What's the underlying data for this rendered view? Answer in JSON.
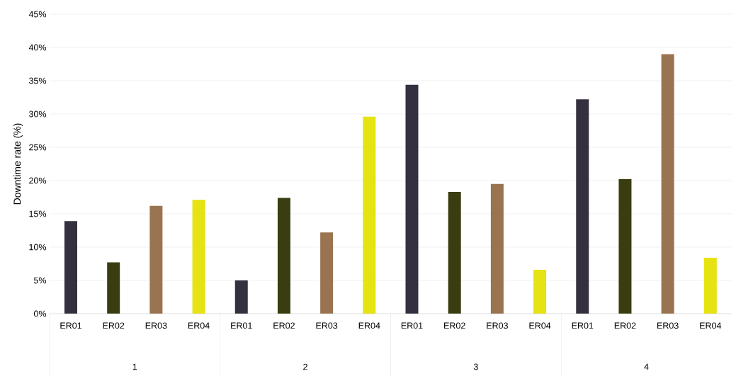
{
  "chart_data": {
    "type": "bar",
    "ylabel": "Downtime rate (%)",
    "categories": [
      "1",
      "2",
      "3",
      "4"
    ],
    "series": [
      {
        "name": "ER01",
        "color": "#35303f",
        "values": [
          13.9,
          5.0,
          34.4,
          32.2
        ]
      },
      {
        "name": "ER02",
        "color": "#3a3d0f",
        "values": [
          7.7,
          17.4,
          18.3,
          20.2
        ]
      },
      {
        "name": "ER03",
        "color": "#9a7350",
        "values": [
          16.2,
          12.2,
          19.5,
          39.0
        ]
      },
      {
        "name": "ER04",
        "color": "#e6e312",
        "values": [
          17.1,
          29.6,
          6.6,
          8.4
        ]
      }
    ],
    "ylim": [
      0,
      45
    ],
    "yticks": [
      {
        "value": 0,
        "label": "0%"
      },
      {
        "value": 5,
        "label": "5%"
      },
      {
        "value": 10,
        "label": "10%"
      },
      {
        "value": 15,
        "label": "15%"
      },
      {
        "value": 20,
        "label": "20%"
      },
      {
        "value": 25,
        "label": "25%"
      },
      {
        "value": 30,
        "label": "30%"
      },
      {
        "value": 35,
        "label": "35%"
      },
      {
        "value": 40,
        "label": "40%"
      },
      {
        "value": 45,
        "label": "45%"
      }
    ],
    "grid": "y"
  }
}
